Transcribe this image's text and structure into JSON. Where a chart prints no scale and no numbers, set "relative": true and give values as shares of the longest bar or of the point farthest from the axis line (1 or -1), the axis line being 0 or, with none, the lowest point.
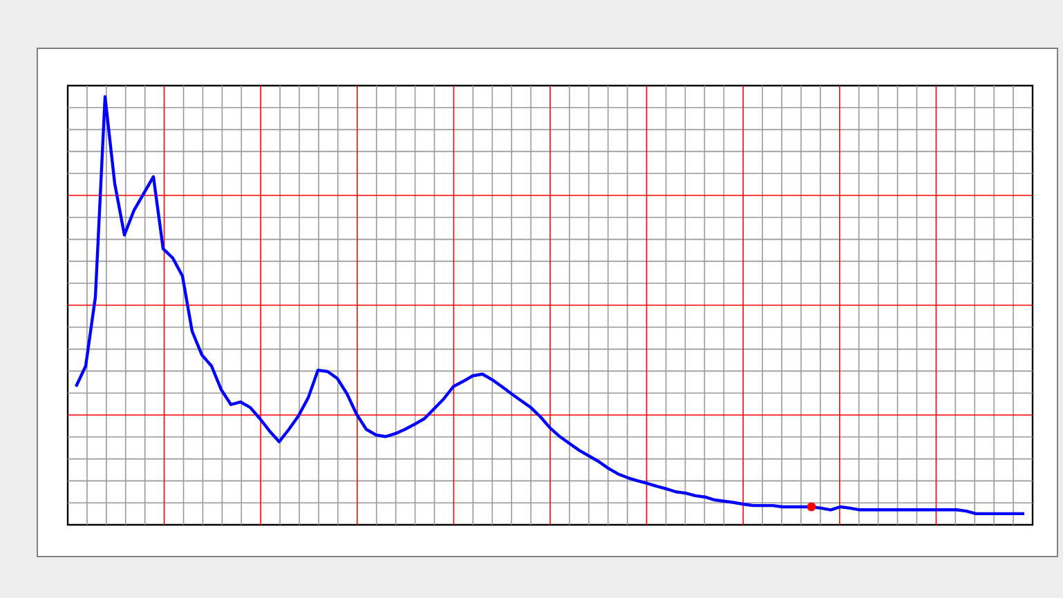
{
  "chart_data": {
    "type": "line",
    "relative": true,
    "grid": true,
    "marker": "none",
    "categories": [
      null,
      null,
      null,
      null,
      null,
      null,
      null,
      null,
      null,
      null,
      null,
      null,
      null,
      null,
      null,
      null,
      null,
      null,
      null,
      null,
      null,
      null,
      null,
      null,
      null,
      null,
      null,
      null,
      null,
      null,
      null,
      null,
      null,
      null,
      null,
      null,
      null,
      null,
      null,
      null,
      null,
      null,
      null,
      null,
      null,
      null,
      null,
      null,
      null,
      null,
      null,
      null,
      null,
      null,
      null,
      null,
      null,
      null,
      null,
      null,
      null,
      null,
      null,
      null,
      null,
      null,
      null,
      null,
      null,
      null,
      null,
      null,
      null,
      null,
      null,
      null,
      null,
      null,
      null,
      null,
      null,
      null,
      null,
      null,
      null,
      null,
      null,
      null,
      null,
      null,
      null,
      null,
      null,
      null,
      null,
      null,
      null,
      null,
      null
    ],
    "series": [
      {
        "color": "#0000ff",
        "values": [
          0.323,
          0.371,
          0.532,
          1,
          0.797,
          0.677,
          0.735,
          0.774,
          0.813,
          0.645,
          0.623,
          0.581,
          0.452,
          0.397,
          0.371,
          0.316,
          0.281,
          0.287,
          0.274,
          0.248,
          0.219,
          0.194,
          0.223,
          0.255,
          0.297,
          0.361,
          0.358,
          0.342,
          0.306,
          0.258,
          0.223,
          0.21,
          0.206,
          0.213,
          0.223,
          0.235,
          0.248,
          0.271,
          0.294,
          0.323,
          0.335,
          0.348,
          0.352,
          0.339,
          0.323,
          0.306,
          0.29,
          0.274,
          0.252,
          0.226,
          0.206,
          0.19,
          0.174,
          0.161,
          0.148,
          0.132,
          0.119,
          0.11,
          0.103,
          0.097,
          0.09,
          0.084,
          0.077,
          0.074,
          0.068,
          0.065,
          0.058,
          0.055,
          0.052,
          0.048,
          0.045,
          0.045,
          0.045,
          0.042,
          0.042,
          0.042,
          0.042,
          0.039,
          0.035,
          0.042,
          0.039,
          0.035,
          0.035,
          0.035,
          0.035,
          0.035,
          0.035,
          0.035,
          0.035,
          0.035,
          0.035,
          0.035,
          0.032,
          0.026,
          0.026,
          0.026,
          0.026,
          0.026,
          0.026
        ]
      }
    ]
  }
}
